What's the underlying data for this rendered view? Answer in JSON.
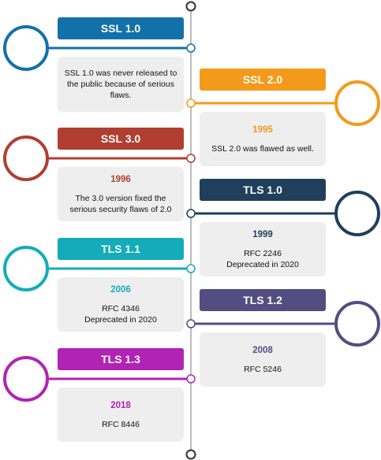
{
  "events": [
    {
      "title": "SSL 1.0",
      "year": "",
      "desc": "SSL 1.0 was never released to the public because of serious flaws.",
      "color": "#1271a8"
    },
    {
      "title": "SSL 2.0",
      "year": "1995",
      "desc": "SSL 2.0 was flawed as well.",
      "color": "#f39a1b"
    },
    {
      "title": "SSL 3.0",
      "year": "1996",
      "desc": "The 3.0 version fixed the serious security flaws of 2.0",
      "color": "#b03f31"
    },
    {
      "title": "TLS 1.0",
      "year": "1999",
      "desc": "RFC 2246\nDeprecated in 2020",
      "color": "#1f3f5a"
    },
    {
      "title": "TLS 1.1",
      "year": "2006",
      "desc": "RFC 4346\nDeprecated in 2020",
      "color": "#13acb8"
    },
    {
      "title": "TLS 1.2",
      "year": "2008",
      "desc": "RFC 5246",
      "color": "#544d80"
    },
    {
      "title": "TLS 1.3",
      "year": "2018",
      "desc": "RFC 8446",
      "color": "#b123b3"
    }
  ],
  "line_color": "#bbbbbb",
  "endpoint_color": "#333333"
}
